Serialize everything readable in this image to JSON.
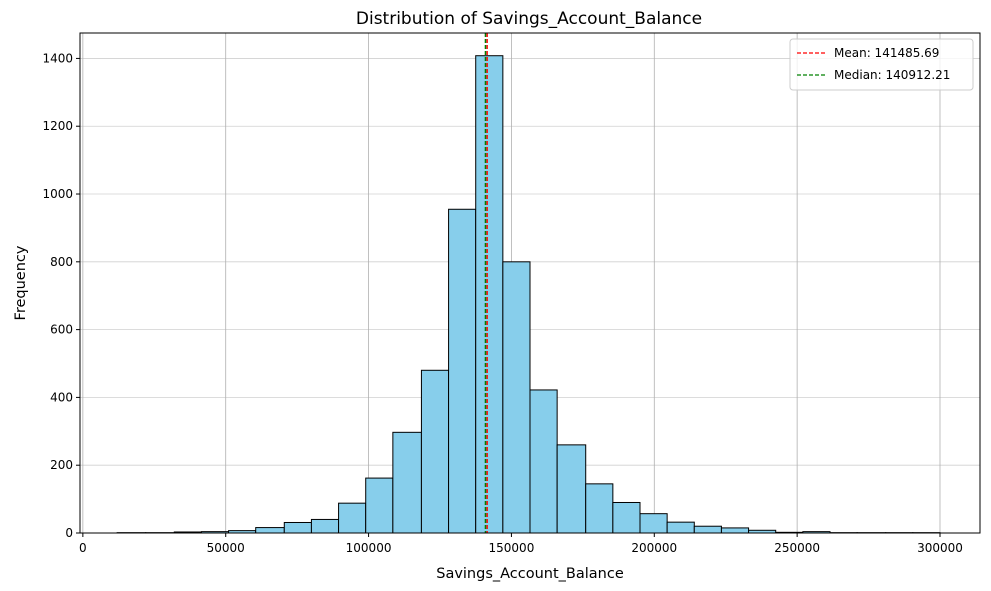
{
  "chart_data": {
    "type": "bar",
    "subtype": "histogram",
    "title": "Distribution of Savings_Account_Balance",
    "xlabel": "Savings_Account_Balance",
    "ylabel": "Frequency",
    "xlim": [
      -1000,
      314000
    ],
    "ylim": [
      0,
      1475
    ],
    "x_ticks": [
      0,
      50000,
      100000,
      150000,
      200000,
      250000,
      300000
    ],
    "x_tick_labels": [
      "0",
      "50000",
      "100000",
      "150000",
      "200000",
      "250000",
      "300000"
    ],
    "y_ticks": [
      0,
      200,
      400,
      600,
      800,
      1000,
      1200,
      1400
    ],
    "y_tick_labels": [
      "0",
      "200",
      "400",
      "600",
      "800",
      "1000",
      "1200",
      "1400"
    ],
    "bin_edges": [
      12000,
      22000,
      32000,
      41500,
      51000,
      60500,
      70500,
      80000,
      89500,
      99000,
      108500,
      118500,
      128000,
      137500,
      147000,
      156500,
      166000,
      176000,
      185500,
      195000,
      204500,
      214000,
      223500,
      233000,
      242500,
      252000,
      261500,
      271000,
      281000,
      290500,
      300000
    ],
    "counts": [
      1,
      1,
      3,
      4,
      7,
      16,
      31,
      40,
      88,
      162,
      297,
      480,
      955,
      1408,
      800,
      422,
      260,
      145,
      90,
      57,
      32,
      20,
      15,
      8,
      2,
      4,
      1,
      1,
      1,
      1
    ],
    "bar_color": "#87ceeb",
    "bar_edge_color": "#000000",
    "reference_lines": [
      {
        "label": "Mean: 141485.69",
        "value": 141485.69,
        "color": "#ff0000",
        "style": "dashed"
      },
      {
        "label": "Median: 140912.21",
        "value": 140912.21,
        "color": "#008000",
        "style": "dashed"
      }
    ],
    "grid": true,
    "legend_position": "top-right"
  }
}
